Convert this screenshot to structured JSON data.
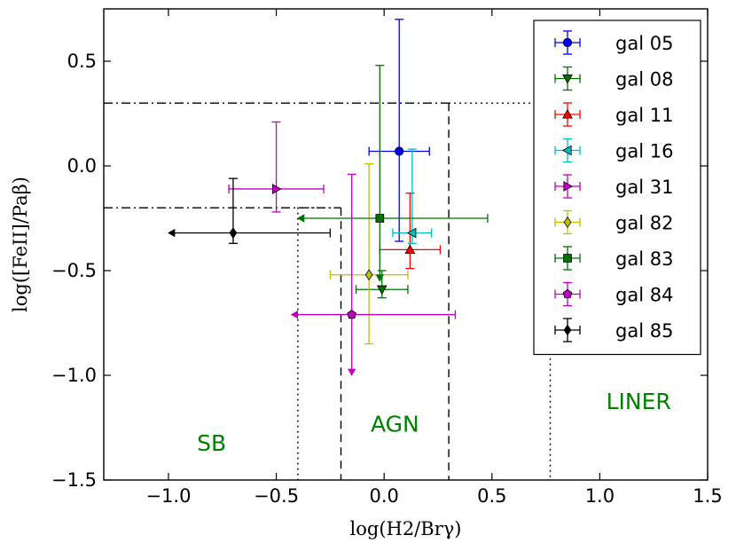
{
  "chart_data": {
    "type": "scatter",
    "title": "",
    "xlabel": "log(H$_2$/Br$\\gamma$)",
    "ylabel": "log([FeII]/Pa$\\beta$)",
    "xlabel_text": "log(H2/Brγ)",
    "ylabel_text": "log([FeII]/Paβ)",
    "xlim": [
      -1.3,
      1.5
    ],
    "ylim": [
      -1.5,
      0.75
    ],
    "xticks": [
      -1.0,
      -0.5,
      0.0,
      0.5,
      1.0,
      1.5
    ],
    "yticks": [
      -1.5,
      -1.0,
      -0.5,
      0.0,
      0.5
    ],
    "xtick_labels": [
      "−1.0",
      "−0.5",
      "0.0",
      "0.5",
      "1.0",
      "1.5"
    ],
    "ytick_labels": [
      "−1.5",
      "−1.0",
      "−0.5",
      "0.0",
      "0.5"
    ],
    "grid": false,
    "legend_position": "top-right",
    "series": [
      {
        "name": "gal 05",
        "color": "#0000ff",
        "marker": "circle",
        "x": 0.07,
        "y": 0.07,
        "xerr": [
          0.14,
          0.14
        ],
        "yerr": [
          0.43,
          0.63
        ],
        "x_upper_limit": false,
        "y_upper_limit": false
      },
      {
        "name": "gal 08",
        "color": "#007000",
        "marker": "triangle-down",
        "x": -0.01,
        "y": -0.59,
        "xerr": [
          0.12,
          0.12
        ],
        "yerr": [
          0.04,
          0.09
        ],
        "x_upper_limit": false,
        "y_upper_limit": false
      },
      {
        "name": "gal 11",
        "color": "#ff0000",
        "marker": "triangle-up",
        "x": 0.12,
        "y": -0.4,
        "xerr": [
          0.14,
          0.14
        ],
        "yerr": [
          0.09,
          0.27
        ],
        "x_upper_limit": false,
        "y_upper_limit": false
      },
      {
        "name": "gal 16",
        "color": "#00bfbf",
        "marker": "triangle-left",
        "x": 0.13,
        "y": -0.32,
        "xerr": [
          0.09,
          0.09
        ],
        "yerr": [
          0.05,
          0.4
        ],
        "x_upper_limit": false,
        "y_upper_limit": false
      },
      {
        "name": "gal 31",
        "color": "#bf00bf",
        "marker": "triangle-right",
        "x": -0.5,
        "y": -0.11,
        "xerr": [
          0.22,
          0.22
        ],
        "yerr": [
          0.11,
          0.32
        ],
        "x_upper_limit": false,
        "y_upper_limit": false
      },
      {
        "name": "gal 82",
        "color": "#bfbf00",
        "marker": "diamond",
        "x": -0.07,
        "y": -0.52,
        "xerr": [
          0.18,
          0.18
        ],
        "yerr": [
          0.33,
          0.53
        ],
        "x_upper_limit": false,
        "y_upper_limit": false
      },
      {
        "name": "gal 83",
        "color": "#007000",
        "marker": "square",
        "x": -0.02,
        "y": -0.25,
        "xerr": [
          0.0,
          0.5
        ],
        "yerr": [
          0.0,
          0.73
        ],
        "x_upper_limit": true,
        "y_upper_limit": true,
        "x_limit_to": -0.4,
        "y_limit_to": -0.55
      },
      {
        "name": "gal 84",
        "color": "#bf00bf",
        "marker": "pentagon",
        "x": -0.15,
        "y": -0.71,
        "xerr": [
          0.0,
          0.48
        ],
        "yerr": [
          0.0,
          0.67
        ],
        "x_upper_limit": true,
        "y_upper_limit": true,
        "x_limit_to": -0.43,
        "y_limit_to": -1.0
      },
      {
        "name": "gal 85",
        "color": "#000000",
        "marker": "diamond",
        "x": -0.7,
        "y": -0.32,
        "xerr": [
          0.0,
          0.45
        ],
        "yerr": [
          0.05,
          0.26
        ],
        "x_upper_limit": true,
        "y_upper_limit": false,
        "x_limit_to": -1.0
      }
    ],
    "annotations": [
      {
        "text": "SB",
        "x": -0.8,
        "y": -1.36,
        "color": "#008000"
      },
      {
        "text": "AGN",
        "x": 0.05,
        "y": -1.27,
        "color": "#008000"
      },
      {
        "text": "LINER",
        "x": 1.18,
        "y": -1.16,
        "color": "#008000"
      }
    ],
    "boundary_lines": [
      {
        "style": "dashdot",
        "points": [
          [
            -1.3,
            0.3
          ],
          [
            0.3,
            0.3
          ]
        ]
      },
      {
        "style": "dashdot",
        "points": [
          [
            -1.3,
            -0.2
          ],
          [
            -0.2,
            -0.2
          ]
        ]
      },
      {
        "style": "dashed",
        "points": [
          [
            0.3,
            0.3
          ],
          [
            0.3,
            -1.5
          ]
        ]
      },
      {
        "style": "dashed",
        "points": [
          [
            -0.2,
            -0.2
          ],
          [
            -0.2,
            -1.5
          ]
        ]
      },
      {
        "style": "dotted",
        "points": [
          [
            0.3,
            0.3
          ],
          [
            0.77,
            0.3
          ],
          [
            0.77,
            -1.5
          ]
        ]
      },
      {
        "style": "dotted",
        "points": [
          [
            -0.2,
            -0.2
          ],
          [
            -0.4,
            -0.2
          ],
          [
            -0.4,
            -1.5
          ]
        ]
      }
    ]
  }
}
